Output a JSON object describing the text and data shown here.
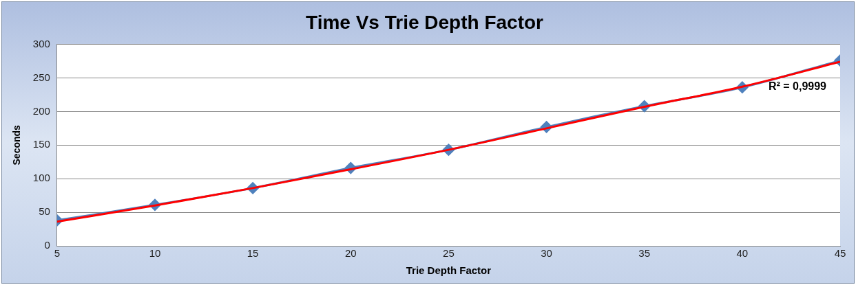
{
  "chart_data": {
    "type": "line",
    "title": "Time Vs Trie Depth Factor",
    "xlabel": "Trie Depth Factor",
    "ylabel": "Seconds",
    "x": [
      5,
      10,
      15,
      20,
      25,
      30,
      35,
      40,
      45
    ],
    "series": [
      {
        "color": "#4f81bd",
        "marker": "diamond",
        "values": [
          38,
          61,
          86,
          116,
          143,
          177,
          208,
          236,
          276
        ]
      },
      {
        "color": "#ff0000",
        "marker": "none",
        "values": [
          36,
          60,
          86,
          114,
          143,
          175,
          207,
          237,
          274
        ]
      }
    ],
    "xlim": [
      5,
      45
    ],
    "xticks": [
      5,
      10,
      15,
      20,
      25,
      30,
      35,
      40,
      45
    ],
    "ylim": [
      0,
      300
    ],
    "yticks": [
      0,
      50,
      100,
      150,
      200,
      250,
      300
    ],
    "grid": "y",
    "legend": false,
    "annotations": [
      "R² = 0,9999"
    ]
  }
}
